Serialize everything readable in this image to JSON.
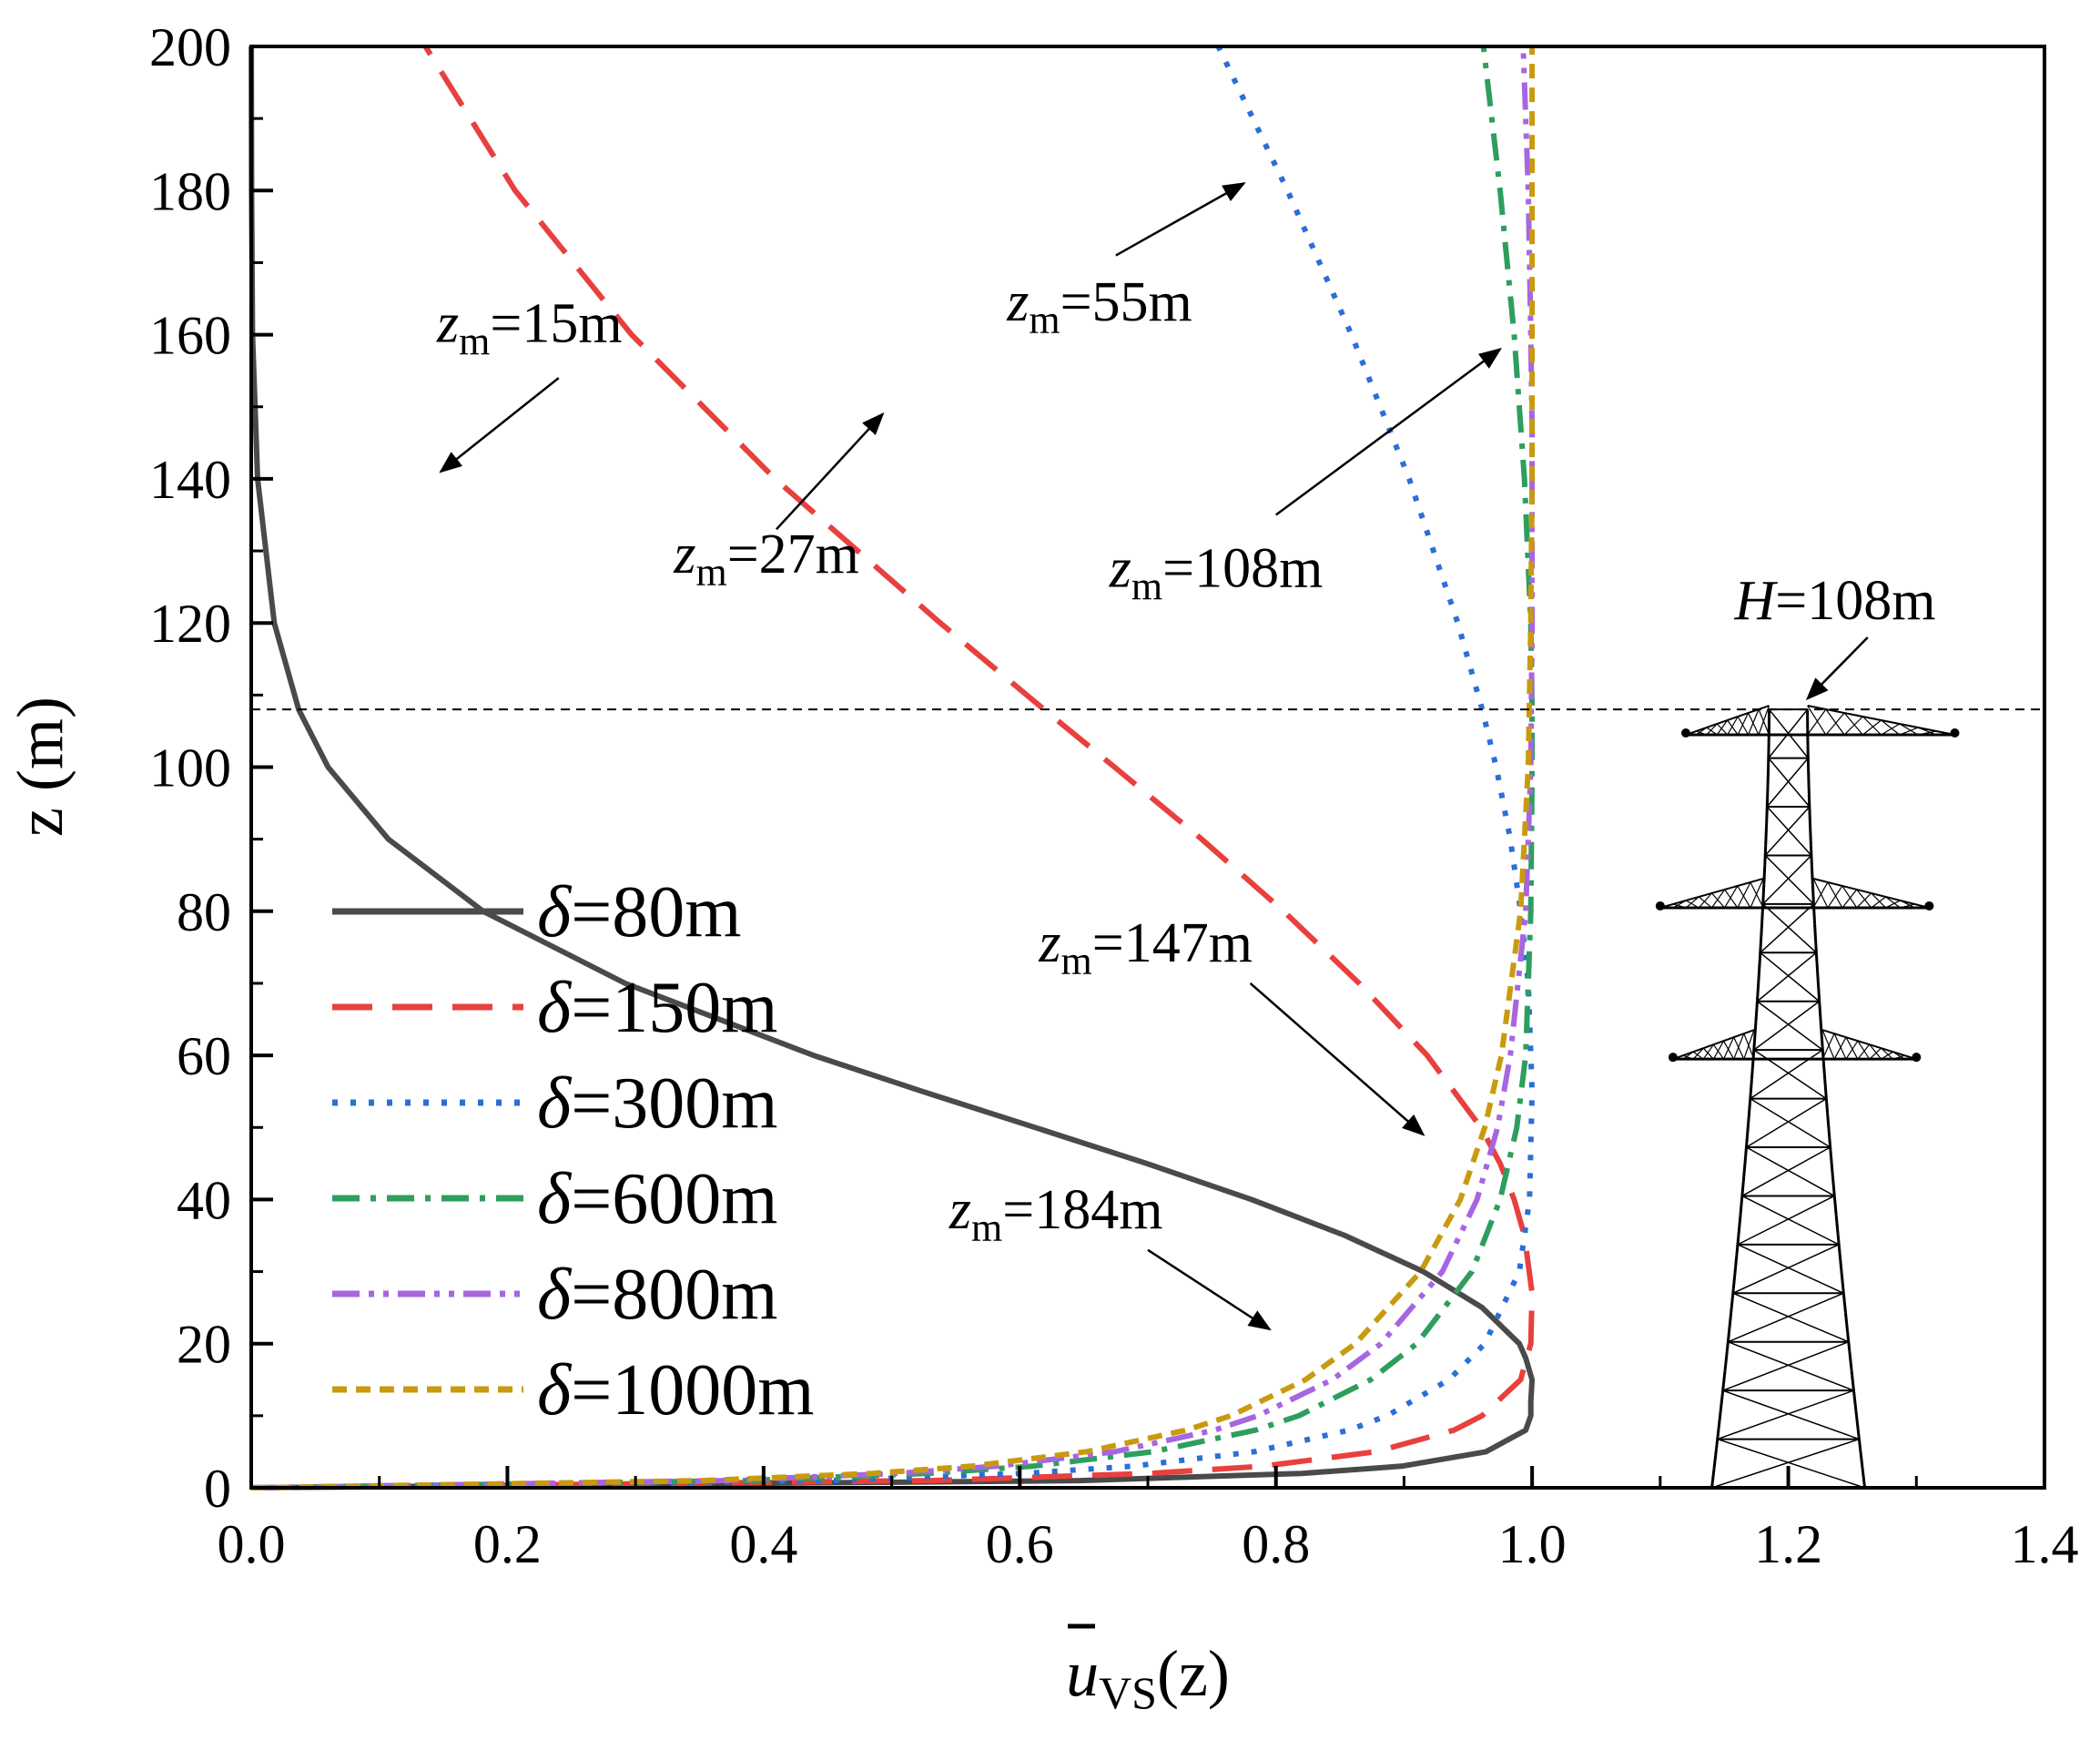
{
  "chart_data": {
    "type": "line",
    "title": "",
    "xlabel": "u̅VS(z)",
    "xlabel_main": "u",
    "xlabel_sub": "VS",
    "xlabel_paren": "(z)",
    "ylabel": "z (m)",
    "xlim": [
      0.0,
      1.4
    ],
    "ylim": [
      0,
      200
    ],
    "xticks": [
      0.0,
      0.2,
      0.4,
      0.6,
      0.8,
      1.0,
      1.2,
      1.4
    ],
    "xtick_labels": [
      "0.0",
      "0.2",
      "0.4",
      "0.6",
      "0.8",
      "1.0",
      "1.2",
      "1.4"
    ],
    "yticks": [
      0,
      20,
      40,
      60,
      80,
      100,
      120,
      140,
      160,
      180,
      200
    ],
    "ytick_labels": [
      "0",
      "20",
      "40",
      "60",
      "80",
      "100",
      "120",
      "140",
      "160",
      "180",
      "200"
    ],
    "grid": false,
    "legend_position": "left-bottom",
    "series": [
      {
        "name": "δ=80m",
        "delta": 80,
        "zm": 15,
        "color": "#4a4a4a",
        "dash": "solid",
        "z": [
          0,
          1,
          2,
          3,
          5,
          8,
          10,
          12,
          15,
          18,
          20,
          25,
          30,
          35,
          40,
          45,
          50,
          55,
          60,
          70,
          80,
          90,
          100,
          108,
          120,
          140,
          160,
          180,
          200
        ],
        "u": [
          0.0,
          0.647,
          0.82,
          0.898,
          0.964,
          0.995,
          0.999,
          0.999,
          1.0,
          0.995,
          0.99,
          0.961,
          0.915,
          0.854,
          0.781,
          0.699,
          0.612,
          0.524,
          0.439,
          0.292,
          0.181,
          0.107,
          0.06,
          0.037,
          0.018,
          0.005,
          0.001,
          0.0003,
          0.0001
        ]
      },
      {
        "name": "δ=150m",
        "delta": 150,
        "zm": 27,
        "color": "#e8403e",
        "dash": "long-dash",
        "z": [
          0,
          1,
          2,
          3,
          5,
          8,
          10,
          15,
          20,
          27,
          35,
          40,
          45,
          50,
          60,
          70,
          80,
          90,
          100,
          108,
          120,
          140,
          160,
          180,
          200
        ],
        "u": [
          0.0,
          0.531,
          0.702,
          0.79,
          0.878,
          0.939,
          0.961,
          0.991,
          0.999,
          1.0,
          0.994,
          0.986,
          0.975,
          0.96,
          0.918,
          0.865,
          0.806,
          0.742,
          0.674,
          0.619,
          0.538,
          0.409,
          0.297,
          0.206,
          0.136
        ]
      },
      {
        "name": "δ=300m",
        "delta": 300,
        "zm": 55,
        "color": "#2b6fd6",
        "dash": "dotted",
        "z": [
          0,
          1,
          2,
          3,
          5,
          8,
          10,
          15,
          20,
          30,
          40,
          55,
          70,
          80,
          90,
          100,
          108,
          120,
          140,
          160,
          180,
          200
        ],
        "u": [
          0.0,
          0.45,
          0.603,
          0.688,
          0.783,
          0.857,
          0.887,
          0.935,
          0.963,
          0.99,
          0.998,
          1.0,
          0.997,
          0.991,
          0.983,
          0.972,
          0.961,
          0.942,
          0.904,
          0.859,
          0.809,
          0.755
        ]
      },
      {
        "name": "δ=600m",
        "delta": 600,
        "zm": 108,
        "color": "#2e9e5e",
        "dash": "dash-dot",
        "z": [
          0,
          1,
          2,
          3,
          5,
          8,
          10,
          15,
          20,
          30,
          40,
          50,
          60,
          80,
          100,
          108,
          120,
          140,
          160,
          180,
          200
        ],
        "u": [
          0.0,
          0.385,
          0.528,
          0.61,
          0.704,
          0.784,
          0.818,
          0.874,
          0.91,
          0.953,
          0.975,
          0.988,
          0.995,
          0.999,
          1.0,
          1.0,
          0.999,
          0.994,
          0.986,
          0.975,
          0.962
        ]
      },
      {
        "name": "δ=800m",
        "delta": 800,
        "zm": 147,
        "color": "#a766e0",
        "dash": "dash-dot-dot",
        "z": [
          0,
          1,
          2,
          3,
          5,
          8,
          10,
          15,
          20,
          30,
          40,
          50,
          60,
          80,
          100,
          120,
          147,
          160,
          180,
          200
        ],
        "u": [
          0.0,
          0.367,
          0.504,
          0.582,
          0.674,
          0.752,
          0.786,
          0.844,
          0.882,
          0.93,
          0.957,
          0.973,
          0.983,
          0.995,
          0.999,
          1.0,
          1.0,
          0.999,
          0.997,
          0.993
        ]
      },
      {
        "name": "δ=1000m",
        "delta": 1000,
        "zm": 184,
        "color": "#c99a10",
        "dash": "short-dash",
        "z": [
          0,
          1,
          2,
          3,
          5,
          8,
          10,
          15,
          20,
          30,
          40,
          50,
          60,
          80,
          100,
          120,
          140,
          160,
          184,
          200
        ],
        "u": [
          0.0,
          0.352,
          0.485,
          0.562,
          0.652,
          0.73,
          0.765,
          0.823,
          0.862,
          0.913,
          0.944,
          0.963,
          0.976,
          0.991,
          0.997,
          0.999,
          1.0,
          1.0,
          1.0,
          1.0
        ]
      }
    ],
    "reference_line": {
      "z": 108,
      "label_prefix": "H",
      "label_value": "=108m"
    },
    "annotations": [
      {
        "prefix": "z",
        "sub": "m",
        "value": "=15m"
      },
      {
        "prefix": "z",
        "sub": "m",
        "value": "=27m"
      },
      {
        "prefix": "z",
        "sub": "m",
        "value": "=55m"
      },
      {
        "prefix": "z",
        "sub": "m",
        "value": "=108m"
      },
      {
        "prefix": "z",
        "sub": "m",
        "value": "=147m"
      },
      {
        "prefix": "z",
        "sub": "m",
        "value": "=184m"
      }
    ],
    "legend": [
      {
        "symbol": "δ",
        "value": "=80m"
      },
      {
        "symbol": "δ",
        "value": "=150m"
      },
      {
        "symbol": "δ",
        "value": "=300m"
      },
      {
        "symbol": "δ",
        "value": "=600m"
      },
      {
        "symbol": "δ",
        "value": "=800m"
      },
      {
        "symbol": "δ",
        "value": "=1000m"
      }
    ]
  },
  "icons": {
    "tower": "transmission-tower-icon"
  }
}
